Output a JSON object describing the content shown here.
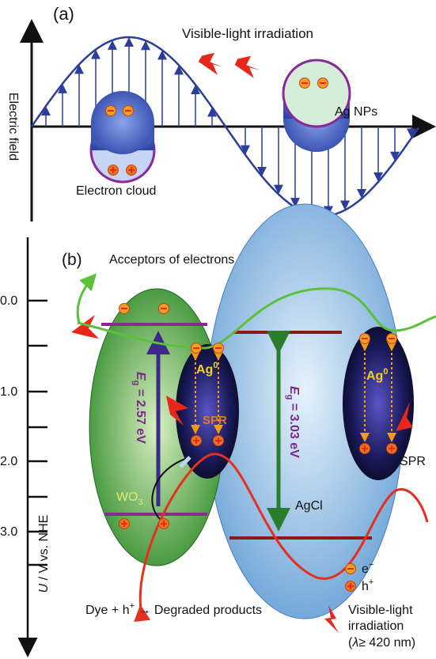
{
  "panel_a": {
    "label": "(a)",
    "title": "Visible-light irradiation",
    "axis_label": "Electric field",
    "particle_label": "Ag NPs",
    "cloud_label": "Electron cloud"
  },
  "panel_b": {
    "label": "(b)",
    "acceptors": "Acceptors of electrons",
    "axis_ticks": [
      "0.0",
      "1.0",
      "2.0",
      "3.0"
    ],
    "axis_label": {
      "italic": "U",
      "rest": " / V vs. NHE"
    },
    "ag_left": {
      "base": "Ag",
      "sup": "0"
    },
    "ag_right": {
      "base": "Ag",
      "sup": "0"
    },
    "spr_left": "SPR",
    "spr_right": "SPR",
    "wo3": {
      "base": "WO",
      "sub": "3"
    },
    "agcl": "AgCl",
    "eg_wo3": {
      "e": "E",
      "sub": "g",
      "rest": " = 2.57 eV"
    },
    "eg_agcl": {
      "e": "E",
      "sub": "g",
      "rest": " = 3.03 eV"
    },
    "legend": {
      "electron": {
        "base": "e",
        "sup": "−"
      },
      "hole": {
        "base": "h",
        "sup": "+"
      }
    },
    "light": {
      "line1": "Visible-light",
      "line2": "irradiation",
      "open": "(",
      "lambda": "λ",
      "rest": "≥ 420 nm)"
    },
    "reaction": {
      "pre": "Dye + h",
      "sup": "+",
      "post": " → Degraded products"
    }
  }
}
